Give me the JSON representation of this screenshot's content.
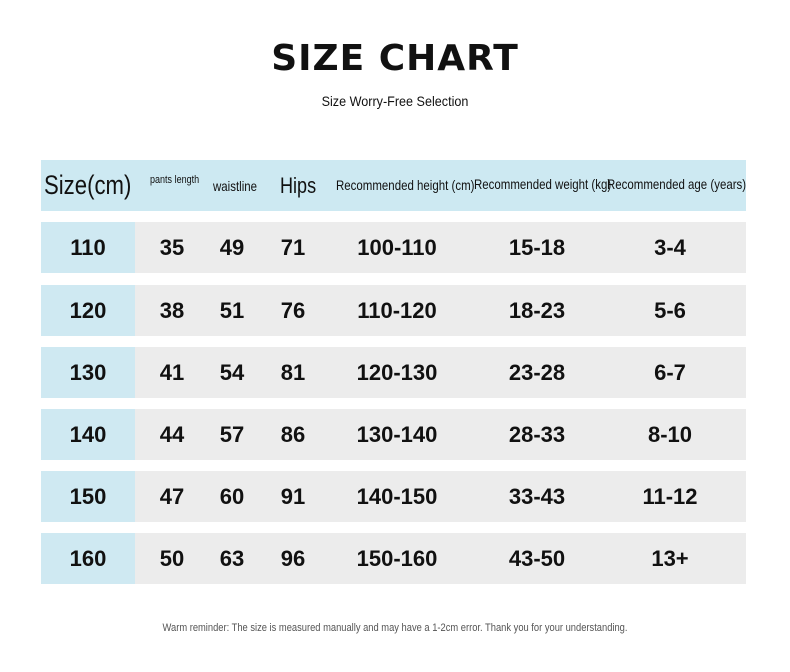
{
  "title": "SIZE CHART",
  "subtitle": "Size Worry-Free Selection",
  "table": {
    "headers": [
      "Size(cm)",
      "pants length",
      "waistline",
      "Hips",
      "Recommended height (cm)",
      "Recommended weight (kg)",
      "Recommended age (years)"
    ],
    "rows": [
      [
        "110",
        "35",
        "49",
        "71",
        "100-110",
        "15-18",
        "3-4"
      ],
      [
        "120",
        "38",
        "51",
        "76",
        "110-120",
        "18-23",
        "5-6"
      ],
      [
        "130",
        "41",
        "54",
        "81",
        "120-130",
        "23-28",
        "6-7"
      ],
      [
        "140",
        "44",
        "57",
        "86",
        "130-140",
        "28-33",
        "8-10"
      ],
      [
        "150",
        "47",
        "60",
        "91",
        "140-150",
        "33-43",
        "11-12"
      ],
      [
        "160",
        "50",
        "63",
        "96",
        "150-160",
        "43-50",
        "13+"
      ]
    ]
  },
  "note": "Warm reminder: The size is measured manually and may have a 1-2cm error. Thank you for your understanding.",
  "colors": {
    "header_bg": "#cde9f2",
    "row_bg": "#ececec",
    "size_cell_bg": "#cfe9f2"
  }
}
